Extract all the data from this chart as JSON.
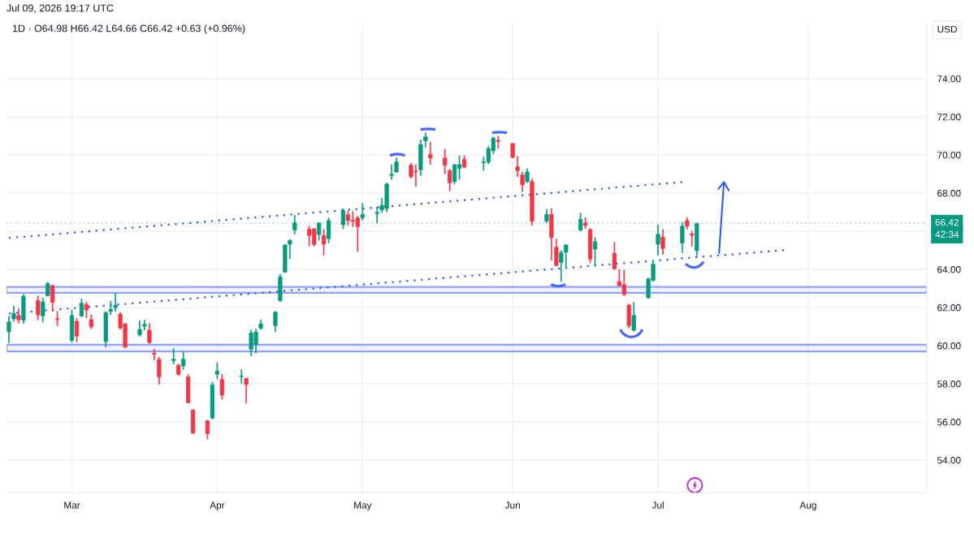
{
  "chart_data": {
    "type": "candlestick",
    "title": "1D · O64.98 H66.42 L64.66 C66.42 +0.63 (+0.96%)",
    "ylabel": "USD",
    "annotations": [
      "Jul 09, 2026 19:17 UTC",
      "42:34"
    ],
    "x": [
      "2026-02-17",
      "2026-02-18",
      "2026-02-19",
      "2026-02-20",
      "2026-02-23",
      "2026-02-24",
      "2026-02-25",
      "2026-02-26",
      "2026-02-27",
      "2026-03-02",
      "2026-03-03",
      "2026-03-04",
      "2026-03-05",
      "2026-03-06",
      "2026-03-09",
      "2026-03-10",
      "2026-03-11",
      "2026-03-12",
      "2026-03-13",
      "2026-03-16",
      "2026-03-17",
      "2026-03-18",
      "2026-03-19",
      "2026-03-20",
      "2026-03-23",
      "2026-03-24",
      "2026-03-25",
      "2026-03-26",
      "2026-03-27",
      "2026-03-30",
      "2026-03-31",
      "2026-04-01",
      "2026-04-02",
      "2026-04-06",
      "2026-04-07",
      "2026-04-08",
      "2026-04-09",
      "2026-04-10",
      "2026-04-13",
      "2026-04-14",
      "2026-04-15",
      "2026-04-16",
      "2026-04-17",
      "2026-04-20",
      "2026-04-21",
      "2026-04-22",
      "2026-04-23",
      "2026-04-24",
      "2026-04-27",
      "2026-04-28",
      "2026-04-29",
      "2026-04-30",
      "2026-05-01",
      "2026-05-04",
      "2026-05-05",
      "2026-05-06",
      "2026-05-07",
      "2026-05-08",
      "2026-05-11",
      "2026-05-12",
      "2026-05-13",
      "2026-05-14",
      "2026-05-15",
      "2026-05-18",
      "2026-05-19",
      "2026-05-20",
      "2026-05-21",
      "2026-05-22",
      "2026-05-26",
      "2026-05-27",
      "2026-05-28",
      "2026-05-29",
      "2026-06-01",
      "2026-06-02",
      "2026-06-03",
      "2026-06-04",
      "2026-06-05",
      "2026-06-08",
      "2026-06-09",
      "2026-06-10",
      "2026-06-11",
      "2026-06-12",
      "2026-06-15",
      "2026-06-16",
      "2026-06-17",
      "2026-06-18",
      "2026-06-22",
      "2026-06-23",
      "2026-06-24",
      "2026-06-25",
      "2026-06-26",
      "2026-06-29",
      "2026-06-30",
      "2026-07-01",
      "2026-07-02",
      "2026-07-06",
      "2026-07-07",
      "2026-07-08",
      "2026-07-09"
    ],
    "ohlc": [
      [
        60.74,
        61.55,
        60.14,
        61.26
      ],
      [
        61.4,
        62.08,
        61.28,
        61.69
      ],
      [
        61.59,
        61.94,
        61.18,
        61.36
      ],
      [
        61.33,
        62.69,
        61.16,
        62.59
      ],
      [
        62.37,
        62.61,
        61.35,
        61.62
      ],
      [
        61.56,
        62.51,
        61.23,
        62.3
      ],
      [
        62.62,
        63.33,
        62.59,
        63.26
      ],
      [
        63.15,
        63.19,
        61.8,
        62.27
      ],
      [
        61.42,
        61.8,
        61.05,
        61.37
      ],
      [
        60.28,
        61.87,
        60.17,
        61.59
      ],
      [
        61.28,
        61.45,
        60.2,
        60.5
      ],
      [
        61.55,
        62.47,
        61.52,
        62.23
      ],
      [
        62.16,
        62.3,
        61.45,
        61.87
      ],
      [
        61.37,
        61.63,
        60.88,
        60.99
      ],
      [
        60.21,
        61.8,
        59.93,
        61.73
      ],
      [
        61.8,
        62.34,
        61.63,
        61.91
      ],
      [
        62.0,
        62.77,
        61.8,
        62.13
      ],
      [
        61.65,
        61.75,
        60.86,
        60.93
      ],
      [
        61.14,
        61.19,
        59.89,
        59.93
      ],
      [
        60.57,
        61.31,
        60.49,
        60.85
      ],
      [
        61.02,
        61.34,
        60.81,
        61.12
      ],
      [
        60.81,
        61.17,
        60.1,
        60.17
      ],
      [
        59.61,
        59.82,
        59.25,
        59.55
      ],
      [
        59.29,
        59.39,
        57.97,
        58.36
      ],
      [
        59.22,
        59.85,
        59.04,
        59.29
      ],
      [
        58.97,
        59.04,
        58.44,
        58.5
      ],
      [
        58.94,
        59.68,
        58.75,
        59.29
      ],
      [
        58.36,
        58.5,
        56.98,
        57.01
      ],
      [
        56.63,
        56.66,
        55.39,
        55.42
      ],
      [
        56.06,
        56.09,
        55.1,
        55.39
      ],
      [
        56.2,
        58.09,
        56.16,
        57.95
      ],
      [
        58.5,
        59.11,
        58.26,
        58.67
      ],
      [
        58.24,
        58.5,
        57.19,
        57.41
      ],
      [
        58.37,
        58.75,
        58.02,
        58.41
      ],
      [
        58.29,
        58.29,
        56.98,
        57.96
      ],
      [
        59.82,
        60.83,
        59.46,
        60.67
      ],
      [
        60.06,
        60.88,
        59.61,
        60.71
      ],
      [
        60.91,
        61.35,
        60.85,
        61.14
      ],
      [
        61.05,
        61.8,
        60.74,
        61.76
      ],
      [
        62.37,
        63.75,
        62.3,
        63.61
      ],
      [
        63.86,
        65.31,
        63.83,
        65.28
      ],
      [
        65.32,
        65.56,
        64.57,
        65.52
      ],
      [
        66.06,
        66.84,
        65.85,
        66.44
      ],
      [
        66.1,
        66.27,
        65.24,
        65.78
      ],
      [
        66.13,
        66.16,
        65.21,
        65.31
      ],
      [
        65.82,
        66.44,
        65.53,
        66.44
      ],
      [
        65.78,
        66.1,
        64.74,
        65.32
      ],
      [
        65.61,
        66.7,
        65.38,
        66.56
      ],
      [
        66.34,
        67.19,
        66.13,
        67.08
      ],
      [
        66.87,
        67.05,
        66.32,
        66.56
      ],
      [
        66.57,
        67.05,
        66.23,
        66.51
      ],
      [
        66.7,
        66.81,
        64.93,
        66.24
      ],
      [
        66.7,
        67.46,
        66.58,
        66.87
      ],
      [
        66.93,
        67.28,
        66.43,
        66.99
      ],
      [
        67.12,
        67.72,
        66.98,
        67.36
      ],
      [
        67.19,
        68.54,
        67.01,
        68.47
      ],
      [
        68.91,
        69.49,
        68.71,
        68.99
      ],
      [
        69.11,
        69.84,
        69.08,
        69.63
      ],
      [
        69.46,
        69.57,
        68.78,
        68.86
      ],
      [
        69.16,
        69.49,
        68.35,
        69.12
      ],
      [
        69.22,
        70.81,
        68.92,
        70.55
      ],
      [
        70.74,
        71.16,
        70.41,
        70.95
      ],
      [
        70.03,
        70.67,
        69.49,
        69.84
      ],
      [
        69.84,
        70.31,
        69.01,
        69.46
      ],
      [
        69.18,
        69.25,
        68.11,
        68.54
      ],
      [
        68.61,
        69.53,
        68.47,
        69.49
      ],
      [
        69.29,
        69.96,
        68.72,
        69.5
      ],
      [
        69.77,
        69.96,
        69.32,
        69.36
      ],
      [
        69.6,
        69.89,
        69.18,
        69.64
      ],
      [
        69.63,
        70.45,
        69.53,
        70.34
      ],
      [
        70.21,
        70.95,
        70.06,
        70.88
      ],
      [
        70.77,
        70.99,
        70.34,
        70.71
      ],
      [
        70.6,
        70.62,
        69.84,
        69.87
      ],
      [
        69.38,
        69.93,
        68.86,
        69.18
      ],
      [
        68.96,
        69.11,
        68.07,
        68.44
      ],
      [
        68.61,
        69.29,
        68.54,
        69.11
      ],
      [
        68.61,
        68.75,
        66.31,
        66.52
      ],
      [
        66.53,
        67.15,
        66.44,
        66.88
      ],
      [
        66.88,
        67.19,
        64.47,
        65.67
      ],
      [
        65.16,
        65.59,
        64.17,
        64.21
      ],
      [
        64.36,
        64.99,
        63.36,
        64.88
      ],
      [
        64.9,
        65.31,
        64.07,
        65.28
      ],
      [
        66.06,
        66.95,
        66.01,
        66.63
      ],
      [
        66.44,
        66.72,
        66.13,
        66.3
      ],
      [
        66.1,
        66.13,
        64.35,
        64.54
      ],
      [
        65.06,
        65.67,
        64.21,
        65.46
      ],
      [
        64.85,
        65.42,
        64.0,
        64.03
      ],
      [
        63.36,
        64.0,
        63.12,
        63.15
      ],
      [
        63.19,
        63.97,
        62.61,
        62.69
      ],
      [
        62.13,
        62.18,
        60.91,
        61.05
      ],
      [
        60.81,
        62.27,
        60.76,
        61.59
      ],
      [
        62.51,
        63.57,
        62.47,
        63.5
      ],
      [
        63.43,
        64.45,
        63.36,
        64.28
      ],
      [
        65.32,
        66.34,
        64.74,
        65.84
      ],
      [
        65.7,
        66.1,
        64.78,
        65.1
      ],
      [
        65.38,
        66.45,
        64.88,
        66.27
      ],
      [
        66.55,
        66.72,
        66.1,
        66.27
      ],
      [
        65.86,
        66.01,
        65.21,
        65.79
      ],
      [
        64.98,
        66.42,
        64.66,
        66.42
      ]
    ],
    "colors": [
      "#089981",
      "#089981",
      "#f23645",
      "#089981",
      "#f23645",
      "#089981",
      "#089981",
      "#f23645",
      "#f23645",
      "#089981",
      "#f23645",
      "#089981",
      "#f23645",
      "#f23645",
      "#089981",
      "#089981",
      "#089981",
      "#f23645",
      "#f23645",
      "#089981",
      "#089981",
      "#f23645",
      "#f23645",
      "#f23645",
      "#089981",
      "#f23645",
      "#089981",
      "#f23645",
      "#f23645",
      "#f23645",
      "#089981",
      "#089981",
      "#f23645",
      "#089981",
      "#f23645",
      "#089981",
      "#089981",
      "#089981",
      "#089981",
      "#089981",
      "#089981",
      "#089981",
      "#089981",
      "#f23645",
      "#f23645",
      "#089981",
      "#f23645",
      "#089981",
      "#089981",
      "#f23645",
      "#f23645",
      "#f23645",
      "#089981",
      "#089981",
      "#089981",
      "#089981",
      "#089981",
      "#089981",
      "#f23645",
      "#f23645",
      "#089981",
      "#089981",
      "#f23645",
      "#f23645",
      "#f23645",
      "#089981",
      "#089981",
      "#f23645",
      "#089981",
      "#089981",
      "#089981",
      "#f23645",
      "#f23645",
      "#f23645",
      "#f23645",
      "#089981",
      "#f23645",
      "#089981",
      "#f23645",
      "#f23645",
      "#089981",
      "#089981",
      "#089981",
      "#f23645",
      "#f23645",
      "#089981",
      "#f23645",
      "#f23645",
      "#f23645",
      "#f23645",
      "#089981",
      "#089981",
      "#089981",
      "#089981",
      "#f23645",
      "#089981",
      "#f23645",
      "#f23645",
      "#089981"
    ],
    "series": [
      {
        "type": "line",
        "x": [
          "2026-02-17",
          "2026-07-06"
        ],
        "values": [
          65.65,
          68.58
        ],
        "color": "#2f5be6",
        "line_style": "dotted"
      },
      {
        "type": "line",
        "x": [
          "2026-02-17",
          "2026-07-27"
        ],
        "values": [
          61.69,
          65.01
        ],
        "color": "#2f5be6",
        "line_style": "dotted"
      }
    ],
    "xlim": [
      "2026-02-17",
      "2026-08-25"
    ],
    "xticks": [
      {
        "value": "2026-03-02",
        "label": "Mar"
      },
      {
        "value": "2026-04-01",
        "label": "Apr"
      },
      {
        "value": "2026-05-01",
        "label": "May"
      },
      {
        "value": "2026-06-01",
        "label": "Jun"
      },
      {
        "value": "2026-07-01",
        "label": "Jul"
      },
      {
        "value": "2026-08-01",
        "label": "Aug"
      }
    ],
    "ylim": [
      52.3,
      76.85
    ],
    "yticks": [
      {
        "value": 54,
        "label": "54.00"
      },
      {
        "value": 56,
        "label": "56.00"
      },
      {
        "value": 58,
        "label": "58.00"
      },
      {
        "value": 60,
        "label": "60.00"
      },
      {
        "value": 62,
        "label": "62.00"
      },
      {
        "value": 64,
        "label": "64.00"
      },
      {
        "value": 66,
        "label": null
      },
      {
        "value": 68,
        "label": "68.00"
      },
      {
        "value": 70,
        "label": "70.00"
      },
      {
        "value": 72,
        "label": "72.00"
      },
      {
        "value": 74,
        "label": "74.00"
      }
    ],
    "bands": [
      {
        "axis": "y",
        "from": 62.77,
        "to": 63.08,
        "color": "#8c9eff"
      },
      {
        "axis": "y",
        "from": 59.7,
        "to": 60.05,
        "color": "#8c9eff"
      }
    ],
    "ref_lines": [
      {
        "axis": "y",
        "value": 66.42,
        "label": "66.42",
        "color": "#089981",
        "line_style": "dotted"
      }
    ],
    "grid": true
  }
}
